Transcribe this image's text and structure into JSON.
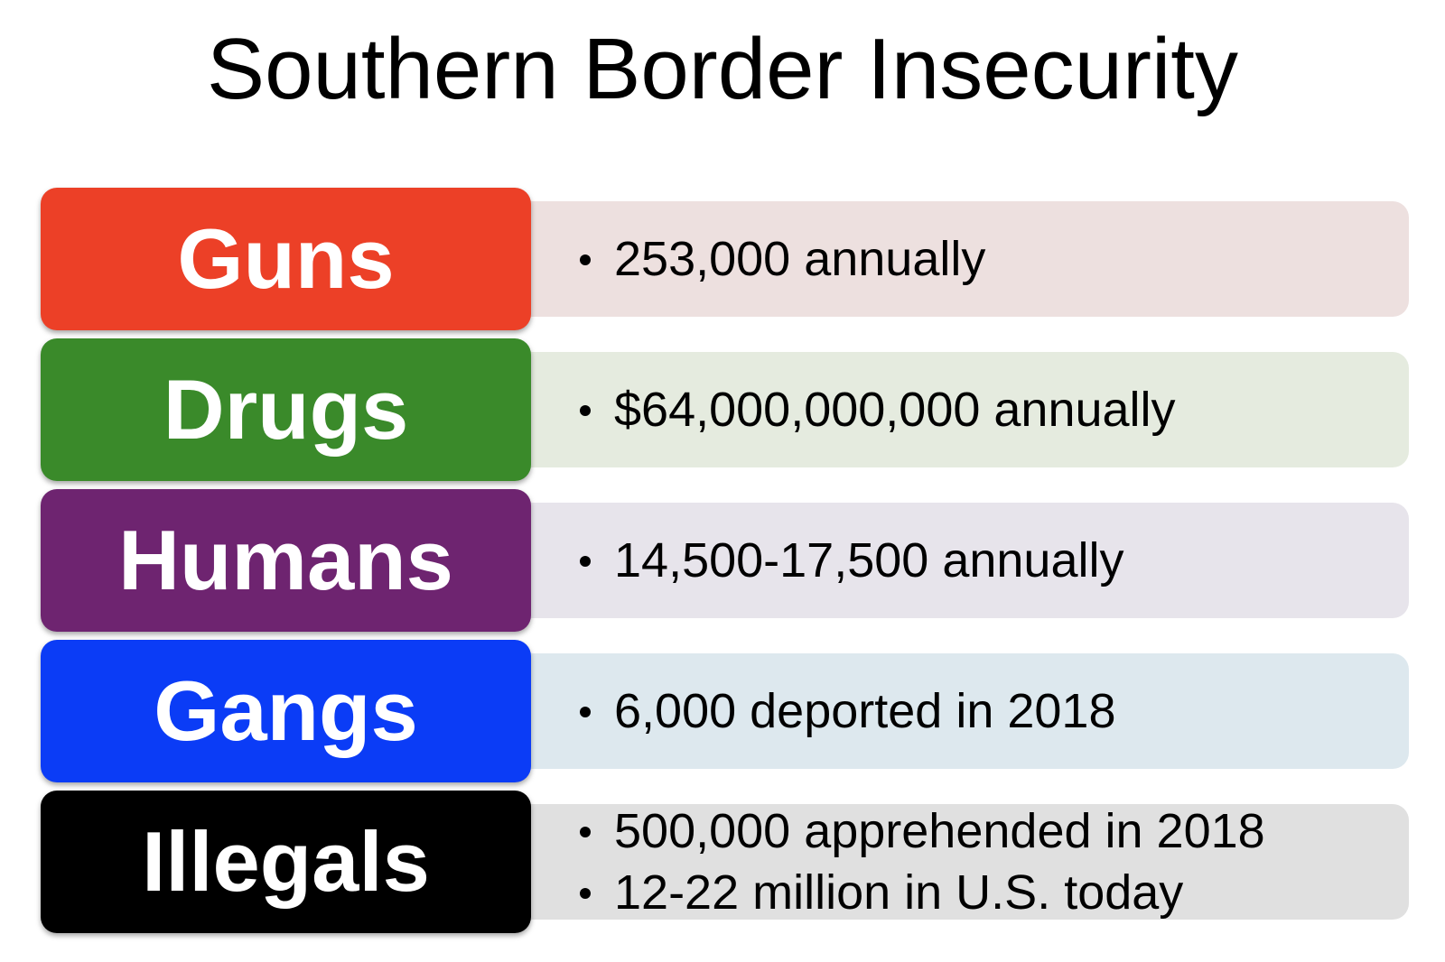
{
  "title": "Southern Border Insecurity",
  "rows": [
    {
      "label": "Guns",
      "items": [
        "253,000 annually"
      ]
    },
    {
      "label": "Drugs",
      "items": [
        "$64,000,000,000 annually"
      ]
    },
    {
      "label": "Humans",
      "items": [
        "14,500-17,500 annually"
      ]
    },
    {
      "label": "Gangs",
      "items": [
        "6,000 deported in 2018"
      ]
    },
    {
      "label": "Illegals",
      "items": [
        "500,000 apprehended in 2018",
        "12-22 million in U.S. today"
      ]
    }
  ]
}
